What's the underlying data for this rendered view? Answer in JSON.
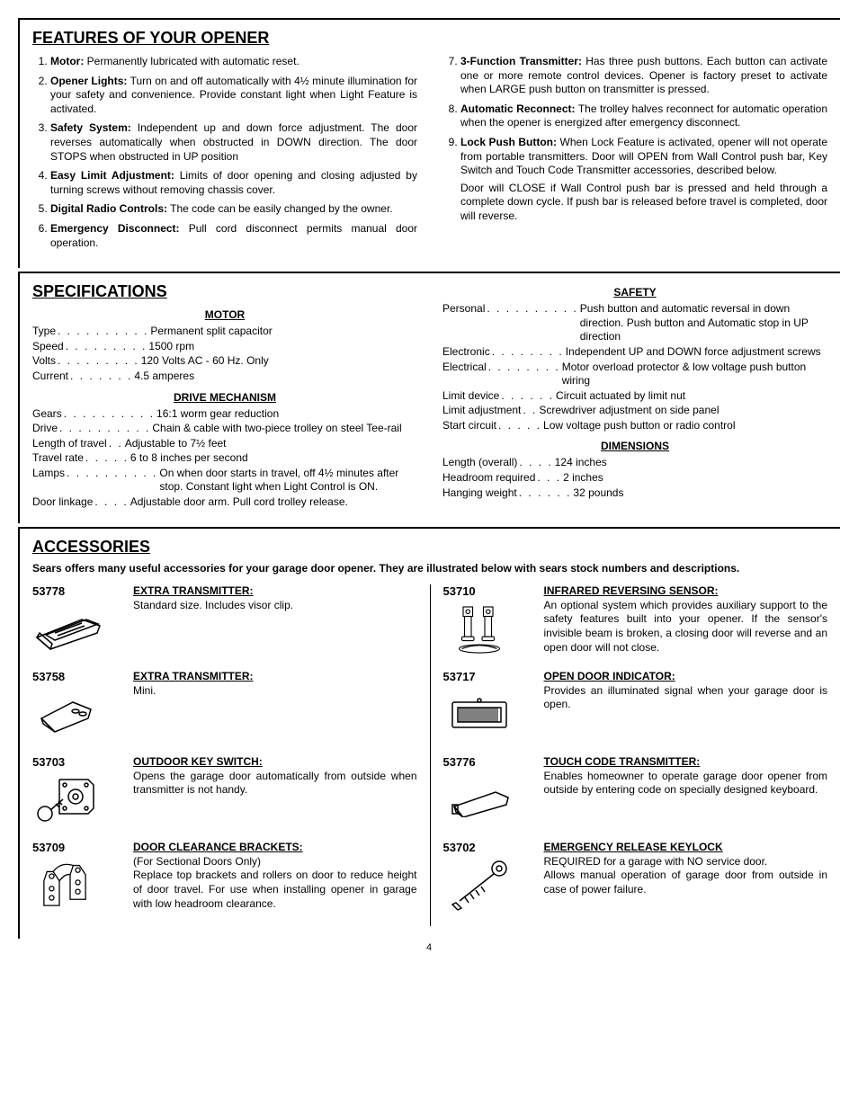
{
  "page_number": "4",
  "features": {
    "heading": "FEATURES OF YOUR OPENER",
    "left": [
      {
        "label": "Motor:",
        "text": " Permanently lubricated with automatic reset."
      },
      {
        "label": "Opener Lights:",
        "text": " Turn on and off automatically with 4½ minute illumination for your safety and convenience. Provide constant light when Light Feature is activated."
      },
      {
        "label": "Safety System:",
        "text": " Independent up and down force adjustment. The door reverses automatically when obstructed in DOWN direction. The door STOPS when obstructed in UP position"
      },
      {
        "label": "Easy Limit Adjustment:",
        "text": " Limits of door opening and closing adjusted by turning screws without removing chassis cover."
      },
      {
        "label": "Digital Radio Controls:",
        "text": " The code can be easily changed by the owner."
      },
      {
        "label": "Emergency Disconnect:",
        "text": " Pull cord disconnect permits manual door operation."
      }
    ],
    "right": [
      {
        "label": "3-Function Transmitter:",
        "text": " Has three push buttons. Each button can activate one or more remote control devices. Opener is factory preset to activate when LARGE push button on transmitter is pressed."
      },
      {
        "label": "Automatic Reconnect:",
        "text": " The trolley halves reconnect for automatic operation when the opener is energized after emergency disconnect."
      },
      {
        "label": "Lock Push Button:",
        "text": " When Lock Feature is activated, opener will not operate from portable transmitters. Door will OPEN from Wall Control push bar, Key Switch and Touch Code Transmitter accessories, described below.",
        "extra": "Door will CLOSE if Wall Control push bar is pressed and held through a complete down cycle. If push bar is released before travel is completed, door will reverse."
      }
    ]
  },
  "specs": {
    "heading": "SPECIFICATIONS",
    "motor_heading": "MOTOR",
    "motor": [
      {
        "k": "Type",
        "v": "Permanent split capacitor"
      },
      {
        "k": "Speed",
        "v": "1500 rpm"
      },
      {
        "k": "Volts",
        "v": "120 Volts AC - 60 Hz. Only"
      },
      {
        "k": "Current",
        "v": "4.5 amperes"
      }
    ],
    "drive_heading": "DRIVE MECHANISM",
    "drive": [
      {
        "k": "Gears",
        "v": "16:1 worm gear reduction"
      },
      {
        "k": "Drive",
        "v": "Chain & cable with two-piece trolley on steel Tee-rail"
      },
      {
        "k": "Length of travel",
        "v": "Adjustable to 7½ feet"
      },
      {
        "k": "Travel rate",
        "v": "6 to 8 inches per second"
      },
      {
        "k": "Lamps",
        "v": "On when door starts in travel, off 4½ minutes after stop. Constant light when Light Control is ON."
      },
      {
        "k": "Door linkage",
        "v": "Adjustable door arm. Pull cord trolley release."
      }
    ],
    "safety_heading": "SAFETY",
    "safety": [
      {
        "k": "Personal",
        "v": "Push button and automatic reversal in down direction. Push button and Automatic stop in UP direction"
      },
      {
        "k": "Electronic",
        "v": "Independent UP and DOWN force adjustment screws"
      },
      {
        "k": "Electrical",
        "v": "Motor overload protector & low voltage push button wiring"
      },
      {
        "k": "Limit device",
        "v": "Circuit actuated by limit nut"
      },
      {
        "k": "Limit adjustment",
        "v": "Screwdriver adjustment on side panel"
      },
      {
        "k": "Start circuit",
        "v": "Low voltage push button or radio control"
      }
    ],
    "dim_heading": "DIMENSIONS",
    "dims": [
      {
        "k": "Length (overall)",
        "v": "124 inches"
      },
      {
        "k": "Headroom required",
        "v": "2 inches"
      },
      {
        "k": "Hanging weight",
        "v": "32 pounds"
      }
    ]
  },
  "accessories": {
    "heading": "ACCESSORIES",
    "intro": "Sears offers many useful accessories for your garage door opener. They are illustrated below with sears stock numbers and descriptions.",
    "left": [
      {
        "sku": "53778",
        "title": "EXTRA TRANSMITTER:",
        "text": "Standard size. Includes visor clip.",
        "icon": "remote-large-icon"
      },
      {
        "sku": "53758",
        "title": "EXTRA TRANSMITTER:",
        "text": "Mini.",
        "icon": "remote-mini-icon"
      },
      {
        "sku": "53703",
        "title": "OUTDOOR KEY SWITCH:",
        "text": "Opens the garage door automatically from outside when transmitter is not handy.",
        "icon": "key-switch-icon"
      },
      {
        "sku": "53709",
        "title": "DOOR CLEARANCE BRACKETS:",
        "text": "(For Sectional Doors Only)\nReplace top brackets and rollers on door to reduce height of door travel. For use when installing opener in garage with low headroom clearance.",
        "icon": "brackets-icon"
      }
    ],
    "right": [
      {
        "sku": "53710",
        "title": "INFRARED REVERSING SENSOR:",
        "text": "An optional system which provides auxiliary support to the safety features built into your opener. If the sensor's invisible beam is broken, a closing door will reverse and an open door will not close.",
        "icon": "ir-sensor-icon"
      },
      {
        "sku": "53717",
        "title": "OPEN DOOR INDICATOR:",
        "text": "Provides an illuminated signal when your garage door is open.",
        "icon": "indicator-icon"
      },
      {
        "sku": "53776",
        "title": "TOUCH CODE TRANSMITTER:",
        "text": "Enables homeowner to operate garage door opener from outside by entering code on specially designed keyboard.",
        "icon": "keypad-icon"
      },
      {
        "sku": "53702",
        "title": "EMERGENCY RELEASE KEYLOCK",
        "text": "REQUIRED for a garage with NO service door.\nAllows manual operation of garage door from outside in case of power failure.",
        "icon": "keylock-icon"
      }
    ]
  }
}
